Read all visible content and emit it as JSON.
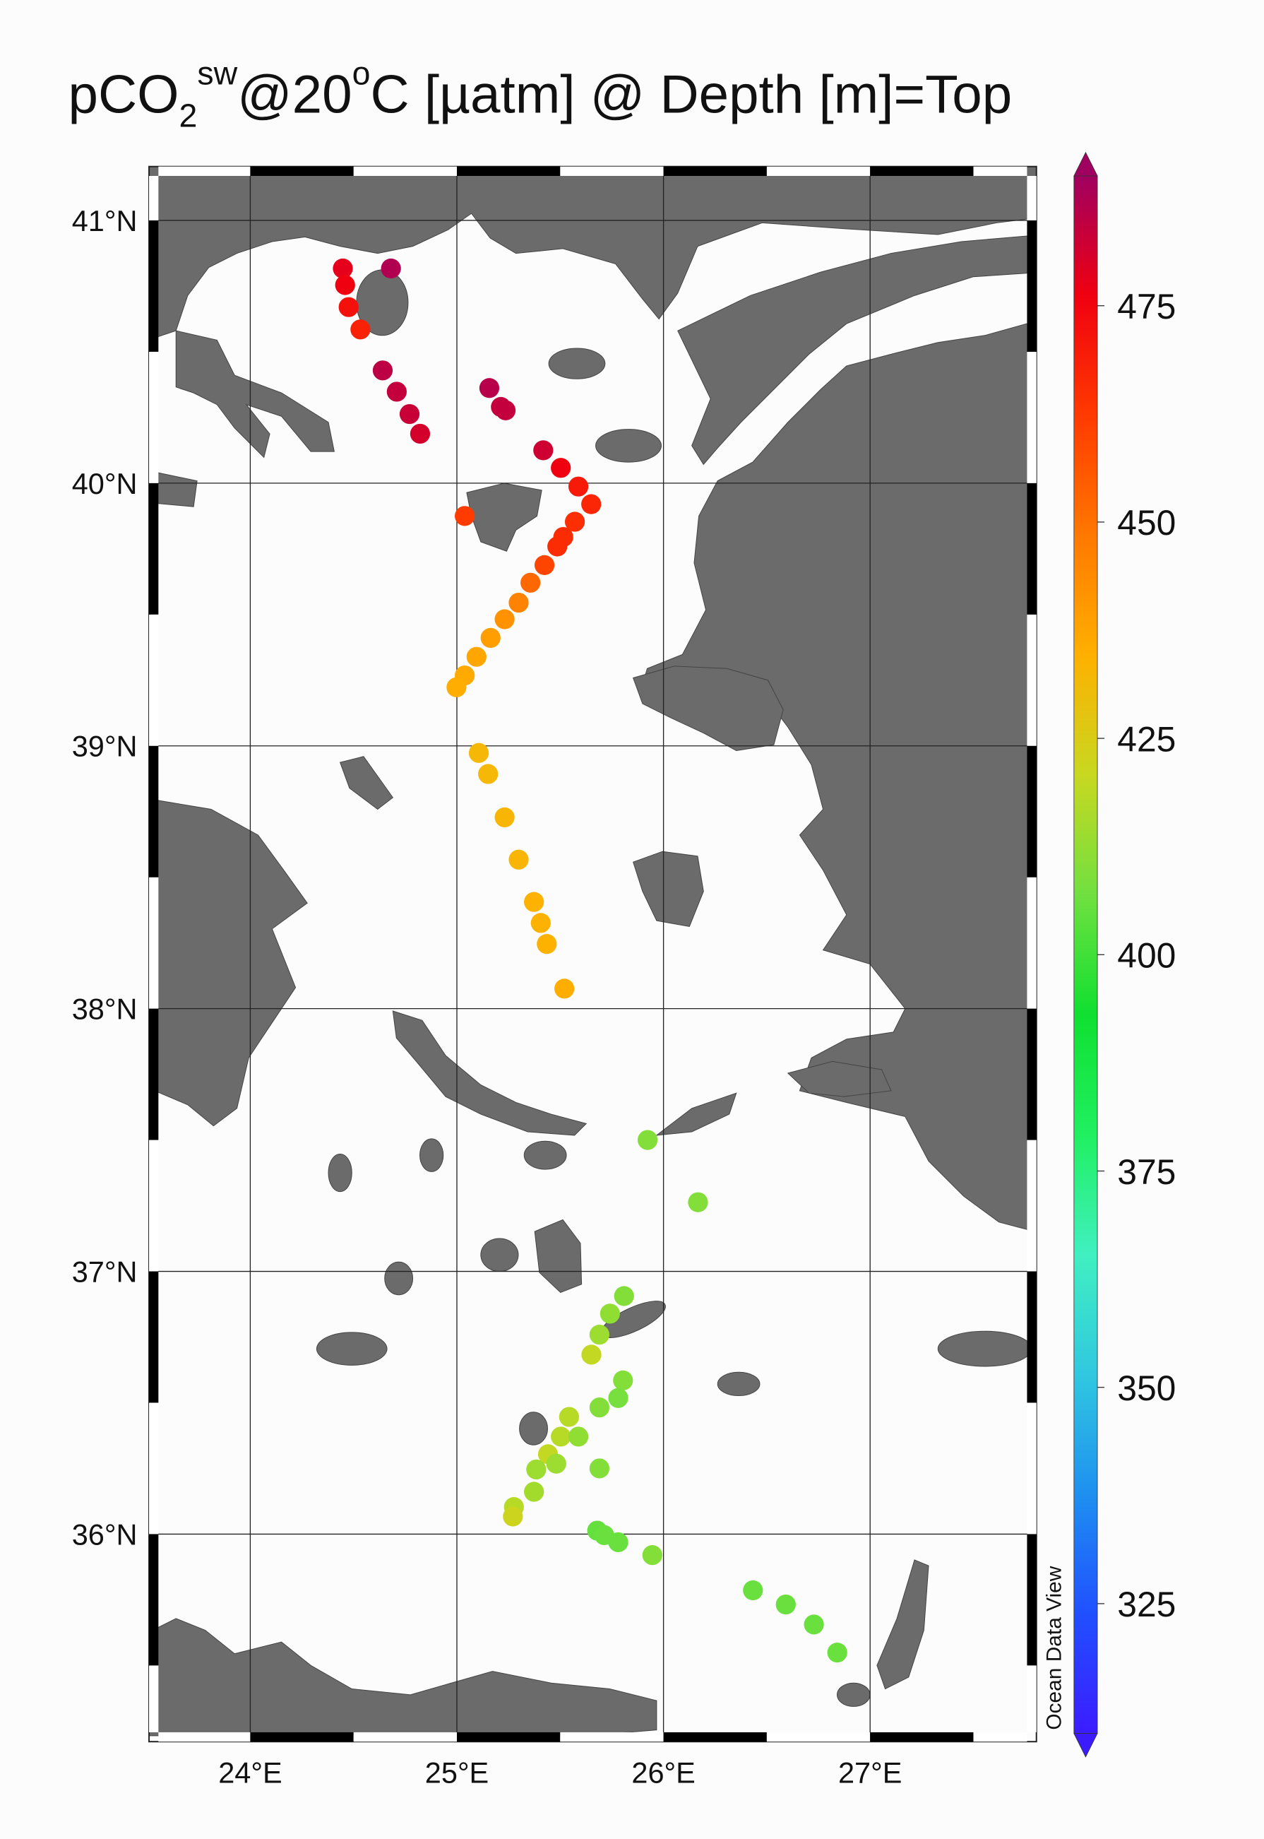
{
  "chart_data": {
    "type": "scatter",
    "title": [
      "pCO",
      "2",
      "sw",
      "@20",
      "o",
      "C [µatm] @ Depth [m]=Top"
    ],
    "watermark": "Ocean Data View",
    "xlim": [
      23.51,
      27.805
    ],
    "ylim": [
      35.21,
      41.205
    ],
    "xticks": [
      {
        "value": 24,
        "label": "24°E"
      },
      {
        "value": 25,
        "label": "25°E"
      },
      {
        "value": 26,
        "label": "26°E"
      },
      {
        "value": 27,
        "label": "27°E"
      }
    ],
    "yticks": [
      {
        "value": 36,
        "label": "36°N"
      },
      {
        "value": 37,
        "label": "37°N"
      },
      {
        "value": 38,
        "label": "38°N"
      },
      {
        "value": 39,
        "label": "39°N"
      },
      {
        "value": 40,
        "label": "40°N"
      },
      {
        "value": 41,
        "label": "41°N"
      }
    ],
    "grid": true,
    "clim": [
      310,
      490
    ],
    "colorbar_ticks": [
      325,
      350,
      375,
      400,
      425,
      450,
      475
    ],
    "colormap": [
      "#3c1cff",
      "#2050ff",
      "#1e90f0",
      "#30c8e0",
      "#40f0c0",
      "#20f060",
      "#10e030",
      "#70e040",
      "#c8d820",
      "#ffb000",
      "#ff7800",
      "#ff3a00",
      "#f00010",
      "#a00060"
    ],
    "x": [
      24.448,
      24.459,
      24.476,
      24.533,
      24.681,
      24.641,
      24.709,
      24.771,
      24.822,
      25.157,
      25.213,
      25.236,
      25.418,
      25.503,
      25.588,
      25.65,
      25.571,
      25.515,
      25.486,
      25.424,
      25.356,
      25.299,
      25.231,
      25.163,
      25.095,
      25.038,
      24.998,
      25.038,
      25.106,
      25.151,
      25.231,
      25.299,
      25.373,
      25.406,
      25.435,
      25.52,
      25.923,
      26.167,
      25.809,
      25.741,
      25.69,
      25.651,
      25.804,
      25.781,
      25.69,
      25.543,
      25.503,
      25.588,
      25.441,
      25.481,
      25.384,
      25.69,
      25.373,
      25.276,
      25.271,
      25.679,
      25.713,
      25.781,
      25.946,
      26.433,
      26.592,
      26.728,
      26.841
    ],
    "y": [
      40.817,
      40.754,
      40.67,
      40.585,
      40.817,
      40.429,
      40.348,
      40.263,
      40.188,
      40.362,
      40.29,
      40.277,
      40.125,
      40.058,
      39.987,
      39.92,
      39.853,
      39.795,
      39.759,
      39.688,
      39.621,
      39.545,
      39.482,
      39.411,
      39.339,
      39.268,
      39.223,
      39.875,
      38.973,
      38.893,
      38.728,
      38.567,
      38.406,
      38.326,
      38.246,
      38.076,
      37.5,
      37.263,
      36.906,
      36.839,
      36.759,
      36.683,
      36.585,
      36.518,
      36.482,
      36.446,
      36.371,
      36.371,
      36.304,
      36.268,
      36.246,
      36.25,
      36.161,
      36.103,
      36.067,
      36.013,
      35.996,
      35.969,
      35.92,
      35.786,
      35.732,
      35.656,
      35.549
    ],
    "values": [
      478,
      476,
      472,
      468,
      487,
      485,
      484,
      483,
      481,
      486,
      484,
      484,
      482,
      476,
      470,
      467,
      465,
      466,
      466,
      460,
      452,
      446,
      442,
      439,
      437,
      436,
      435,
      462,
      432,
      432,
      433,
      433,
      434,
      434,
      434,
      435,
      410,
      410,
      410,
      412,
      414,
      420,
      410,
      408,
      410,
      418,
      418,
      412,
      420,
      414,
      414,
      410,
      415,
      418,
      422,
      405,
      406,
      406,
      410,
      406,
      406,
      406,
      406
    ]
  }
}
